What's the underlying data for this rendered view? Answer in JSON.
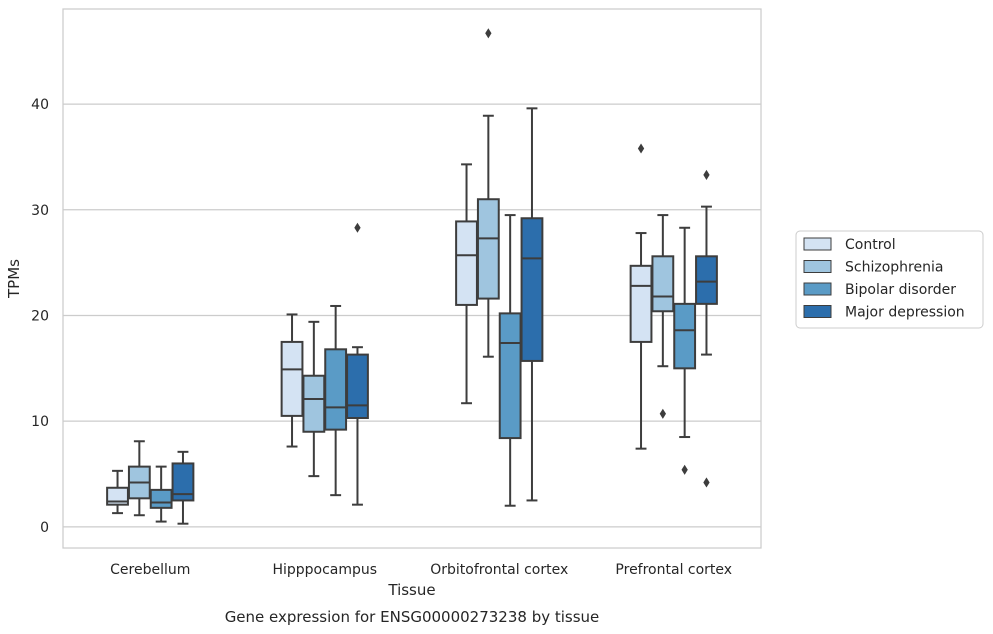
{
  "caption": "Gene expression for ENSG00000273238 by tissue",
  "chart_data": {
    "type": "boxplot",
    "xlabel": "Tissue",
    "ylabel": "TPMs",
    "ylim": [
      -2,
      49
    ],
    "yticks": [
      0,
      10,
      20,
      30,
      40
    ],
    "grid": "horizontal",
    "legend_position": "right",
    "categories": [
      "Cerebellum",
      "Hipppocampus",
      "Orbitofrontal cortex",
      "Prefrontal cortex"
    ],
    "series": [
      {
        "name": "Control",
        "color": "#d4e3f3",
        "boxes": [
          {
            "whislo": 1.3,
            "q1": 2.1,
            "med": 2.4,
            "q3": 3.7,
            "whishi": 5.3,
            "fliers": []
          },
          {
            "whislo": 7.6,
            "q1": 10.5,
            "med": 14.9,
            "q3": 17.5,
            "whishi": 20.1,
            "fliers": []
          },
          {
            "whislo": 11.7,
            "q1": 21.0,
            "med": 25.7,
            "q3": 28.9,
            "whishi": 34.3,
            "fliers": []
          },
          {
            "whislo": 7.4,
            "q1": 17.5,
            "med": 22.8,
            "q3": 24.7,
            "whishi": 27.8,
            "fliers": [
              35.8
            ]
          }
        ]
      },
      {
        "name": "Schizophrenia",
        "color": "#9fc5df",
        "boxes": [
          {
            "whislo": 1.1,
            "q1": 2.7,
            "med": 4.2,
            "q3": 5.7,
            "whishi": 8.1,
            "fliers": []
          },
          {
            "whislo": 4.8,
            "q1": 9.0,
            "med": 12.1,
            "q3": 14.3,
            "whishi": 19.4,
            "fliers": []
          },
          {
            "whislo": 16.1,
            "q1": 21.6,
            "med": 27.3,
            "q3": 31.0,
            "whishi": 38.9,
            "fliers": [
              46.7
            ]
          },
          {
            "whislo": 15.2,
            "q1": 20.4,
            "med": 21.8,
            "q3": 25.6,
            "whishi": 29.5,
            "fliers": [
              10.7
            ]
          }
        ]
      },
      {
        "name": "Bipolar disorder",
        "color": "#5a9bc6",
        "boxes": [
          {
            "whislo": 0.5,
            "q1": 1.8,
            "med": 2.3,
            "q3": 3.5,
            "whishi": 5.7,
            "fliers": []
          },
          {
            "whislo": 3.0,
            "q1": 9.2,
            "med": 11.3,
            "q3": 16.8,
            "whishi": 20.9,
            "fliers": []
          },
          {
            "whislo": 2.0,
            "q1": 8.4,
            "med": 17.4,
            "q3": 20.2,
            "whishi": 29.5,
            "fliers": []
          },
          {
            "whislo": 8.5,
            "q1": 15.0,
            "med": 18.6,
            "q3": 21.1,
            "whishi": 28.3,
            "fliers": [
              5.4
            ]
          }
        ]
      },
      {
        "name": "Major depression",
        "color": "#2c6eac",
        "boxes": [
          {
            "whislo": 0.3,
            "q1": 2.5,
            "med": 3.1,
            "q3": 6.0,
            "whishi": 7.1,
            "fliers": []
          },
          {
            "whislo": 2.1,
            "q1": 10.3,
            "med": 11.5,
            "q3": 16.3,
            "whishi": 17.0,
            "fliers": [
              28.3
            ]
          },
          {
            "whislo": 2.5,
            "q1": 15.7,
            "med": 25.4,
            "q3": 29.2,
            "whishi": 39.6,
            "fliers": []
          },
          {
            "whislo": 16.3,
            "q1": 21.1,
            "med": 23.2,
            "q3": 25.6,
            "whishi": 30.3,
            "fliers": [
              33.3,
              4.2
            ]
          }
        ]
      }
    ]
  }
}
